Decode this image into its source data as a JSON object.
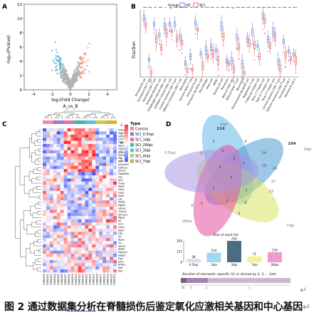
{
  "caption": {
    "prefix": "图 2 通过数据",
    "underlined": "集分析",
    "rest": "在脊髓损伤后鉴定氧化应激相关基因和中心基因",
    "mark": "↵"
  },
  "panelA": {
    "letter": "A",
    "xlabel": "log₂(Fold Change)",
    "xlabel2": "A_vs_B",
    "ylabel": "-log₁₀(Pvalue)",
    "xticks": [
      "-4",
      "-2",
      "0",
      "2",
      "4"
    ],
    "yticks": [
      "0",
      "2",
      "4",
      "6",
      "8",
      "10",
      "12"
    ],
    "colors": {
      "up": "#f0a385",
      "down": "#5ab6cf",
      "ns": "#b3b3b3"
    }
  },
  "panelB": {
    "letter": "B",
    "ylabel": "Fraction",
    "legend_title": "Group",
    "legend": [
      "HC",
      "SCI"
    ],
    "colors": {
      "HC": "#4a6fd1",
      "SCI": "#e0433f"
    },
    "cells": [
      "Activated B cell",
      "Activated CD4 T cell",
      "Activated CD8 T cell",
      "Activated dendritic cell",
      "CD56bright natural killer cell",
      "CD56dim natural killer cell",
      "Central memory CD4 T cell",
      "Effector memeory CD4 T cell",
      "Eosinophil",
      "Gamma delta T cell",
      "Immature B cell",
      "Immature dendritic cell",
      "Macrophage",
      "Mast cell",
      "MDSC",
      "Memory B cell",
      "Monocyte",
      "Natural killer cell",
      "Natural killer T cell",
      "Neutrophil",
      "Plasmacytoid dendritic cell",
      "Regulatory T cell",
      "T follicular helper cell",
      "Type 1 T helper cell",
      "Type 17 T helper cell",
      "Type 2 T helper cell",
      "Central memory CD8 T cell",
      "Effector memeory CD8 T cell",
      "Activated B cell 2",
      "Memory B cell 2"
    ],
    "sig": [
      "***",
      "***",
      "**",
      "***",
      "*",
      "ns",
      "***",
      "***",
      "***",
      "**",
      "*",
      "**",
      "***",
      "***",
      "**",
      "***",
      "***",
      "ns",
      "***",
      "***",
      "***",
      "**",
      "***",
      "***",
      "***",
      "***",
      "**",
      "***",
      "**",
      "***"
    ]
  },
  "panelC": {
    "letter": "C",
    "legend_title": "Type",
    "groups": [
      "Control",
      "SCI_0.5hpi",
      "SCI_1dpi",
      "SCI_28dpi",
      "SCI_3dpi",
      "SCI_4hpi",
      "SCI_7dpi"
    ],
    "group_colors": [
      "#f58ba1",
      "#8e7fc7",
      "#e26fae",
      "#3db7a2",
      "#5fb7e6",
      "#c2cb4d",
      "#d6b436"
    ],
    "scale_ticks": [
      "2",
      "1",
      "0",
      "-1",
      "-2"
    ],
    "genes": [
      "Hmox1",
      "Srxn1",
      "Gpnmb",
      "Lcn2",
      "Timp1",
      "Spp1",
      "Cd44",
      "Anxa3",
      "Steap4",
      "Mt2",
      "Atf3",
      "Serpine1",
      "Cdkn1a",
      "Socs3",
      "Gadd45a",
      "Fos",
      "Ier3",
      "Txnip",
      "Nqo1",
      "Gclm",
      "Gpx1",
      "Sod2",
      "Cat",
      "Prdx6",
      "Mgst1",
      "Gsta4",
      "Txnrd1",
      "Slc7a11",
      "Ptgs2",
      "Il6",
      "Ccl2",
      "Cxcl1",
      "Nos2",
      "Lbp",
      "Cp",
      "Apoe",
      "Clu",
      "Sesn2",
      "Ddit3",
      "Hspa1a",
      "Hspb1",
      "Egr1",
      "Junb",
      "Nr4a1",
      "Klf4",
      "Myc"
    ]
  },
  "panelD": {
    "letter": "D",
    "sets": [
      "1dpi",
      "3dpi",
      "7dpi",
      "28dpi",
      "SCI_0.5hpi"
    ],
    "set_labels": [
      "1dpi",
      "3dpi",
      "7dpi",
      "28dpi",
      "0.5hpi"
    ],
    "set_colors": [
      "#66b8e8",
      "#4f9ad1",
      "#d9e263",
      "#e64fa0",
      "#a998e0"
    ],
    "region_numbers": [
      "114",
      "104",
      "24",
      "29",
      "25",
      "17",
      "13",
      "7",
      "0",
      "0",
      "2",
      "1",
      "0",
      "0",
      "3",
      "4",
      "0",
      "1",
      "0",
      "1",
      "0",
      "0"
    ],
    "bar_title": "Size of each list",
    "bar_values": [
      38,
      114,
      254,
      71,
      119
    ],
    "bar_labels": [
      "0.5hpi",
      "1dpi",
      "3dpi",
      "7dpi",
      "28dpi"
    ],
    "bar_value_labels": [
      "38",
      "114",
      "254",
      "71",
      "119"
    ],
    "yticks": [
      "0",
      "127",
      "254"
    ],
    "strip_title": "Number of elements: specific (1) or shared by 2, 3, ... lists",
    "strip_ticks": [
      "5",
      "4",
      "3",
      "2",
      "1"
    ]
  }
}
